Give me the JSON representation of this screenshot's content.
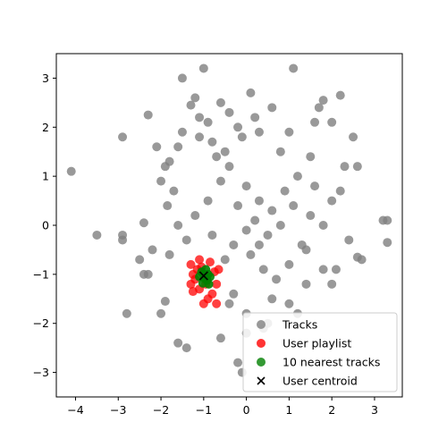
{
  "chart_data": {
    "type": "scatter",
    "title": "",
    "xlabel": "",
    "ylabel": "",
    "xlim": [
      -4.45,
      3.65
    ],
    "ylim": [
      -3.5,
      3.5
    ],
    "xticks": [
      -4,
      -3,
      -2,
      -1,
      0,
      1,
      2,
      3
    ],
    "yticks": [
      -3,
      -2,
      -1,
      0,
      1,
      2,
      3
    ],
    "grid": false,
    "legend_position": "lower right",
    "legend": [
      {
        "label": "Tracks",
        "color": "#808080",
        "marker": "circle"
      },
      {
        "label": "User playlist",
        "color": "#ff0000",
        "marker": "circle"
      },
      {
        "label": "10 nearest tracks",
        "color": "#008000",
        "marker": "circle"
      },
      {
        "label": "User centroid",
        "color": "#000000",
        "marker": "x"
      }
    ],
    "series": [
      {
        "name": "Tracks",
        "color": "#808080",
        "alpha": 0.8,
        "points": [
          [
            -4.1,
            1.1
          ],
          [
            -3.5,
            -0.2
          ],
          [
            -2.9,
            1.8
          ],
          [
            -2.9,
            -0.2
          ],
          [
            -2.9,
            -0.3
          ],
          [
            -2.8,
            -1.8
          ],
          [
            -2.5,
            -0.7
          ],
          [
            -2.4,
            -1.0
          ],
          [
            -2.4,
            0.05
          ],
          [
            -2.3,
            2.25
          ],
          [
            -2.2,
            -0.5
          ],
          [
            -2.1,
            1.6
          ],
          [
            -2.0,
            -1.8
          ],
          [
            -1.9,
            1.2
          ],
          [
            -1.85,
            0.4
          ],
          [
            -1.8,
            -0.6
          ],
          [
            -1.7,
            0.7
          ],
          [
            -1.6,
            1.6
          ],
          [
            -1.5,
            3.0
          ],
          [
            -1.5,
            1.9
          ],
          [
            -1.4,
            -2.5
          ],
          [
            -1.3,
            2.45
          ],
          [
            -1.2,
            2.6
          ],
          [
            -1.1,
            2.2
          ],
          [
            -1.1,
            1.8
          ],
          [
            -1.0,
            3.2
          ],
          [
            -0.9,
            2.1
          ],
          [
            -0.8,
            1.7
          ],
          [
            -0.6,
            2.5
          ],
          [
            -0.5,
            1.5
          ],
          [
            -0.4,
            2.3
          ],
          [
            -0.3,
            -1.4
          ],
          [
            -0.2,
            2.0
          ],
          [
            -0.1,
            1.8
          ],
          [
            0.0,
            -2.2
          ],
          [
            0.1,
            2.7
          ],
          [
            0.2,
            2.2
          ],
          [
            0.3,
            1.9
          ],
          [
            0.4,
            -2.1
          ],
          [
            0.5,
            -2.0
          ],
          [
            0.6,
            2.4
          ],
          [
            0.8,
            1.5
          ],
          [
            1.0,
            1.9
          ],
          [
            1.1,
            3.2
          ],
          [
            1.2,
            -1.8
          ],
          [
            1.4,
            -0.5
          ],
          [
            1.5,
            1.4
          ],
          [
            1.6,
            2.1
          ],
          [
            1.7,
            2.4
          ],
          [
            1.8,
            2.55
          ],
          [
            2.0,
            2.1
          ],
          [
            2.1,
            -0.9
          ],
          [
            2.2,
            2.65
          ],
          [
            2.3,
            1.2
          ],
          [
            2.4,
            -0.3
          ],
          [
            2.5,
            1.8
          ],
          [
            2.6,
            1.2
          ],
          [
            2.6,
            -0.65
          ],
          [
            2.7,
            -0.7
          ],
          [
            3.2,
            0.1
          ],
          [
            3.3,
            -0.35
          ],
          [
            3.3,
            0.1
          ],
          [
            -1.9,
            -1.55
          ],
          [
            -1.6,
            -2.4
          ],
          [
            -0.2,
            -2.8
          ],
          [
            -0.1,
            -3.0
          ],
          [
            -0.6,
            0.9
          ],
          [
            -0.4,
            1.2
          ],
          [
            0.0,
            0.8
          ],
          [
            0.3,
            0.5
          ],
          [
            0.6,
            0.3
          ],
          [
            0.9,
            0.7
          ],
          [
            1.2,
            1.0
          ],
          [
            1.5,
            0.2
          ],
          [
            1.8,
            0.0
          ],
          [
            -1.2,
            0.2
          ],
          [
            -0.9,
            0.5
          ],
          [
            -0.3,
            -0.4
          ],
          [
            0.1,
            -0.6
          ],
          [
            0.4,
            -0.9
          ],
          [
            0.7,
            -1.1
          ],
          [
            1.0,
            -0.8
          ],
          [
            1.3,
            -0.4
          ],
          [
            -1.6,
            0.0
          ],
          [
            -1.4,
            -0.3
          ],
          [
            -0.8,
            -0.2
          ],
          [
            -0.5,
            -0.7
          ],
          [
            0.2,
            0.1
          ],
          [
            0.5,
            -0.2
          ],
          [
            0.8,
            0.0
          ],
          [
            1.1,
            0.4
          ],
          [
            -0.2,
            0.4
          ],
          [
            0.0,
            -0.1
          ],
          [
            0.3,
            -0.4
          ],
          [
            -0.7,
            1.4
          ],
          [
            1.6,
            0.8
          ],
          [
            2.0,
            0.5
          ],
          [
            2.2,
            0.7
          ],
          [
            -2.0,
            0.9
          ],
          [
            -1.8,
            1.3
          ],
          [
            -2.3,
            -1.0
          ],
          [
            -0.4,
            -1.6
          ],
          [
            0.6,
            -1.5
          ],
          [
            1.0,
            -1.6
          ],
          [
            1.4,
            -1.2
          ],
          [
            0.0,
            -1.8
          ],
          [
            -0.6,
            -2.3
          ],
          [
            1.8,
            -0.9
          ],
          [
            2.0,
            -1.2
          ]
        ]
      },
      {
        "name": "User playlist",
        "color": "#ff0000",
        "alpha": 0.75,
        "points": [
          [
            -1.3,
            -0.8
          ],
          [
            -1.3,
            -1.2
          ],
          [
            -1.25,
            -1.35
          ],
          [
            -1.2,
            -1.1
          ],
          [
            -1.15,
            -0.9
          ],
          [
            -1.1,
            -1.3
          ],
          [
            -1.1,
            -0.7
          ],
          [
            -1.0,
            -1.6
          ],
          [
            -0.95,
            -1.2
          ],
          [
            -0.85,
            -0.75
          ],
          [
            -0.8,
            -1.4
          ],
          [
            -0.75,
            -0.95
          ],
          [
            -0.7,
            -1.2
          ],
          [
            -0.7,
            -1.6
          ],
          [
            -0.65,
            -0.9
          ],
          [
            -1.25,
            -1.0
          ],
          [
            -0.9,
            -1.5
          ],
          [
            -1.05,
            -0.85
          ]
        ]
      },
      {
        "name": "10 nearest tracks",
        "color": "#008000",
        "alpha": 0.9,
        "points": [
          [
            -1.05,
            -0.95
          ],
          [
            -1.0,
            -1.0
          ],
          [
            -0.98,
            -1.08
          ],
          [
            -0.95,
            -0.9
          ],
          [
            -0.92,
            -1.12
          ],
          [
            -0.9,
            -1.0
          ],
          [
            -0.88,
            -1.2
          ],
          [
            -1.1,
            -1.05
          ],
          [
            -0.85,
            -1.05
          ],
          [
            -1.02,
            -1.18
          ]
        ]
      },
      {
        "name": "User centroid",
        "color": "#000000",
        "marker": "x",
        "points": [
          [
            -1.0,
            -1.03
          ]
        ]
      }
    ]
  }
}
